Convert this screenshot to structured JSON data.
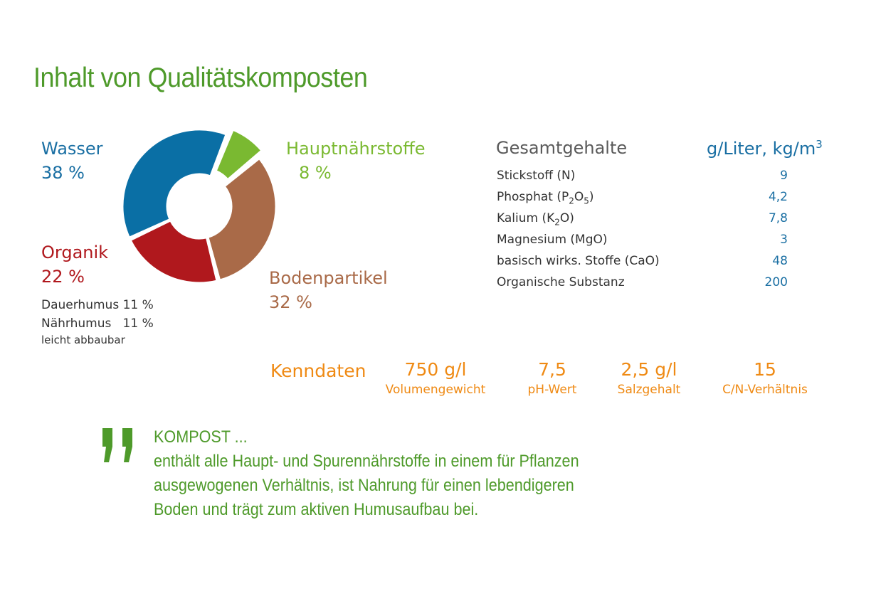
{
  "title": "Inhalt von Qualitätskomposten",
  "chart_data": {
    "type": "pie",
    "categories": [
      "Wasser",
      "Hauptnährstoffe",
      "Bodenpartikel",
      "Organik"
    ],
    "values": [
      38,
      8,
      32,
      22
    ],
    "value_labels": [
      "38 %",
      "8 %",
      "32 %",
      "22 %"
    ],
    "colors": [
      "#0a6fa5",
      "#7ab931",
      "#a96a48",
      "#b0181d"
    ],
    "style": "donut"
  },
  "labels": {
    "wasser": {
      "name": "Wasser",
      "value": "38 %"
    },
    "haupt": {
      "name": "Hauptnährstoffe",
      "value": "8 %"
    },
    "organik": {
      "name": "Organik",
      "value": "22 %"
    },
    "boden": {
      "name": "Bodenpartikel",
      "value": "32 %"
    }
  },
  "organik_detail": {
    "dauer": "Dauerhumus 11 %",
    "naehr": "Nährhumus   11 %",
    "note": "leicht abbaubar"
  },
  "table": {
    "header": "Gesamtgehalte",
    "unit_header": "g/Liter, kg/m",
    "unit_sup": "3",
    "rows": [
      {
        "name": "Stickstoff (N)",
        "value": "9"
      },
      {
        "name": "Phosphat (P",
        "sub1": "2",
        "mid": "O",
        "sub2": "5",
        "end": ")",
        "value": "4,2"
      },
      {
        "name": "Kalium (K",
        "sub1": "2",
        "mid": "O)",
        "value": "7,8"
      },
      {
        "name": "Magnesium (MgO)",
        "value": "3"
      },
      {
        "name": "basisch wirks. Stoffe (CaO)",
        "value": "48"
      },
      {
        "name": "Organische Substanz",
        "value": "200"
      }
    ]
  },
  "kenndaten": {
    "label": "Kenndaten",
    "items": [
      {
        "value": "750 g/l",
        "label": "Volumengewicht"
      },
      {
        "value": "7,5",
        "label": "pH-Wert"
      },
      {
        "value": "2,5 g/l",
        "label": "Salzgehalt"
      },
      {
        "value": "15",
        "label": "C/N-Verhältnis"
      }
    ]
  },
  "quote": {
    "heading": "KOMPOST ...",
    "lines": [
      "enthält alle Haupt- und Spurennährstoffe in einem für Pflanzen",
      "ausgewogenen Verhältnis, ist Nahrung für einen lebendigeren",
      "Boden und trägt zum aktiven Humusaufbau bei."
    ]
  }
}
